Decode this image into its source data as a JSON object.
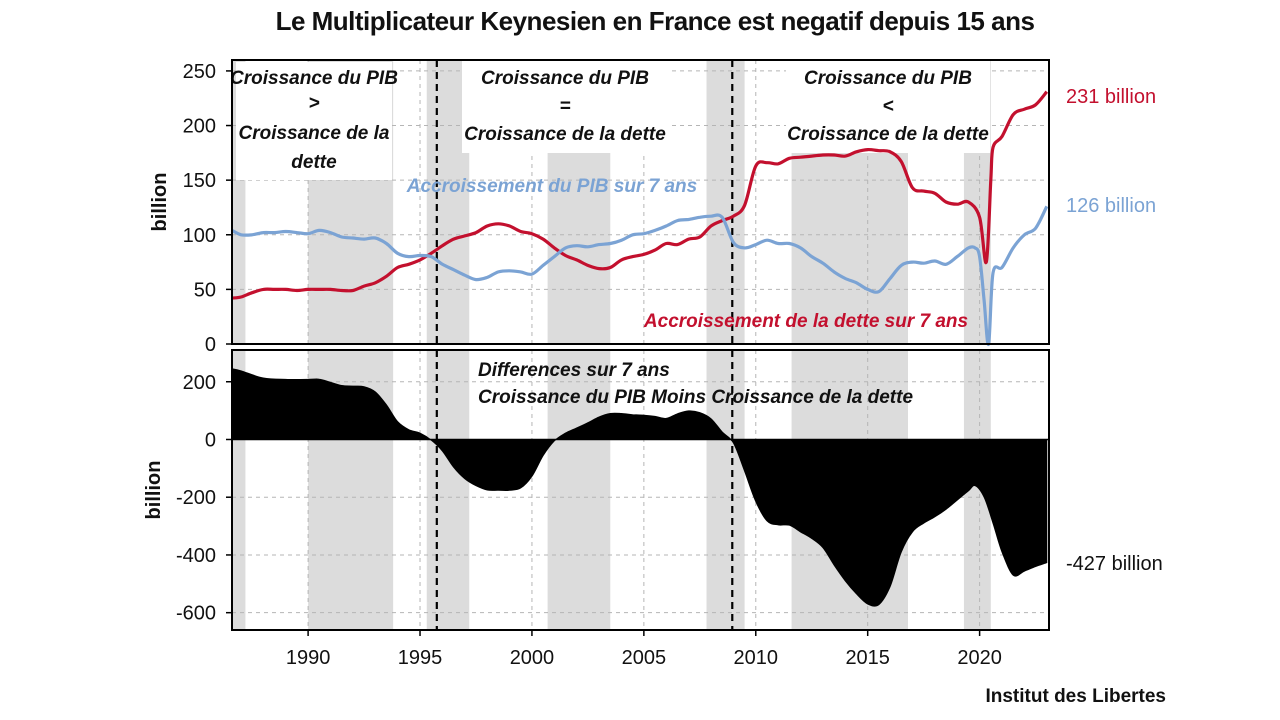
{
  "title": "Le Multiplicateur Keynesien en France est negatif depuis 15 ans",
  "credit": "Institut des Libertes",
  "chart_data": [
    {
      "type": "line",
      "panel": "top",
      "ylabel": "billion",
      "ylim": [
        0,
        260
      ],
      "yticks": [
        0,
        50,
        100,
        150,
        200,
        250
      ],
      "xlim": [
        1986.6,
        2023.1
      ],
      "xticks": [
        1990,
        1995,
        2000,
        2005,
        2010,
        2015,
        2020
      ],
      "shaded_periods": [
        [
          1986.6,
          1987.2
        ],
        [
          1990.0,
          1993.8
        ],
        [
          1995.3,
          1997.2
        ],
        [
          2000.7,
          2003.5
        ],
        [
          2007.8,
          2009.5
        ],
        [
          2011.6,
          2016.8
        ],
        [
          2019.3,
          2020.5
        ]
      ],
      "vlines": [
        1995.75,
        2008.95
      ],
      "annotations": [
        {
          "lines": [
            "Croissance du PIB",
            ">",
            "Croissance de la",
            "dette"
          ]
        },
        {
          "lines": [
            "Croissance du PIB",
            "=",
            "Croissance de la dette"
          ]
        },
        {
          "lines": [
            "Croissance du PIB",
            "<",
            "Croissance de la dette"
          ]
        }
      ],
      "series": [
        {
          "name": "Accroissement du PIB sur 7 ans",
          "color": "#7ba3d4",
          "end_label": "126 billion",
          "points": [
            [
              1986.6,
              104
            ],
            [
              1987.0,
              100
            ],
            [
              1987.5,
              100
            ],
            [
              1988.0,
              102
            ],
            [
              1988.5,
              102
            ],
            [
              1989.0,
              103
            ],
            [
              1989.5,
              102
            ],
            [
              1990.0,
              101
            ],
            [
              1990.5,
              104
            ],
            [
              1991.0,
              102
            ],
            [
              1991.5,
              98
            ],
            [
              1992.0,
              97
            ],
            [
              1992.5,
              96
            ],
            [
              1993.0,
              97
            ],
            [
              1993.5,
              92
            ],
            [
              1994.0,
              83
            ],
            [
              1994.5,
              80
            ],
            [
              1995.0,
              81
            ],
            [
              1995.5,
              80
            ],
            [
              1996.0,
              73
            ],
            [
              1996.5,
              68
            ],
            [
              1997.0,
              63
            ],
            [
              1997.5,
              59
            ],
            [
              1998.0,
              61
            ],
            [
              1998.5,
              66
            ],
            [
              1999.0,
              67
            ],
            [
              1999.5,
              66
            ],
            [
              2000.0,
              64
            ],
            [
              2000.5,
              72
            ],
            [
              2001.0,
              80
            ],
            [
              2001.5,
              88
            ],
            [
              2002.0,
              90
            ],
            [
              2002.5,
              89
            ],
            [
              2003.0,
              91
            ],
            [
              2003.5,
              92
            ],
            [
              2004.0,
              95
            ],
            [
              2004.5,
              100
            ],
            [
              2005.0,
              101
            ],
            [
              2005.5,
              104
            ],
            [
              2006.0,
              108
            ],
            [
              2006.5,
              113
            ],
            [
              2007.0,
              114
            ],
            [
              2007.5,
              116
            ],
            [
              2008.0,
              117
            ],
            [
              2008.5,
              116
            ],
            [
              2009.0,
              93
            ],
            [
              2009.5,
              88
            ],
            [
              2010.0,
              91
            ],
            [
              2010.5,
              95
            ],
            [
              2011.0,
              92
            ],
            [
              2011.5,
              92
            ],
            [
              2012.0,
              88
            ],
            [
              2012.5,
              80
            ],
            [
              2013.0,
              74
            ],
            [
              2013.5,
              66
            ],
            [
              2014.0,
              60
            ],
            [
              2014.5,
              56
            ],
            [
              2015.0,
              50
            ],
            [
              2015.5,
              48
            ],
            [
              2016.0,
              60
            ],
            [
              2016.5,
              72
            ],
            [
              2017.0,
              75
            ],
            [
              2017.5,
              74
            ],
            [
              2018.0,
              76
            ],
            [
              2018.5,
              73
            ],
            [
              2019.0,
              80
            ],
            [
              2019.5,
              88
            ],
            [
              2019.8,
              88
            ],
            [
              2020.0,
              80
            ],
            [
              2020.2,
              40
            ],
            [
              2020.4,
              0
            ],
            [
              2020.6,
              65
            ],
            [
              2021.0,
              70
            ],
            [
              2021.5,
              88
            ],
            [
              2022.0,
              100
            ],
            [
              2022.5,
              106
            ],
            [
              2023.0,
              126
            ]
          ]
        },
        {
          "name": "Accroissement de la dette sur 7 ans",
          "color": "#c3102e",
          "end_label": "231 billion",
          "points": [
            [
              1986.6,
              42
            ],
            [
              1987.0,
              43
            ],
            [
              1987.5,
              47
            ],
            [
              1988.0,
              50
            ],
            [
              1988.5,
              50
            ],
            [
              1989.0,
              50
            ],
            [
              1989.5,
              49
            ],
            [
              1990.0,
              50
            ],
            [
              1990.5,
              50
            ],
            [
              1991.0,
              50
            ],
            [
              1991.5,
              49
            ],
            [
              1992.0,
              49
            ],
            [
              1992.5,
              53
            ],
            [
              1993.0,
              56
            ],
            [
              1993.5,
              62
            ],
            [
              1994.0,
              70
            ],
            [
              1994.5,
              73
            ],
            [
              1995.0,
              77
            ],
            [
              1995.5,
              83
            ],
            [
              1996.0,
              90
            ],
            [
              1996.5,
              96
            ],
            [
              1997.0,
              99
            ],
            [
              1997.5,
              102
            ],
            [
              1998.0,
              108
            ],
            [
              1998.5,
              110
            ],
            [
              1999.0,
              108
            ],
            [
              1999.5,
              103
            ],
            [
              2000.0,
              101
            ],
            [
              2000.5,
              96
            ],
            [
              2001.0,
              88
            ],
            [
              2001.5,
              81
            ],
            [
              2002.0,
              77
            ],
            [
              2002.5,
              72
            ],
            [
              2003.0,
              69
            ],
            [
              2003.5,
              70
            ],
            [
              2004.0,
              77
            ],
            [
              2004.5,
              80
            ],
            [
              2005.0,
              82
            ],
            [
              2005.5,
              86
            ],
            [
              2006.0,
              92
            ],
            [
              2006.5,
              91
            ],
            [
              2007.0,
              96
            ],
            [
              2007.5,
              98
            ],
            [
              2008.0,
              108
            ],
            [
              2008.5,
              113
            ],
            [
              2009.0,
              117
            ],
            [
              2009.5,
              127
            ],
            [
              2010.0,
              163
            ],
            [
              2010.5,
              166
            ],
            [
              2011.0,
              165
            ],
            [
              2011.5,
              170
            ],
            [
              2012.0,
              171
            ],
            [
              2012.5,
              172
            ],
            [
              2013.0,
              173
            ],
            [
              2013.5,
              173
            ],
            [
              2014.0,
              172
            ],
            [
              2014.5,
              176
            ],
            [
              2015.0,
              178
            ],
            [
              2015.5,
              177
            ],
            [
              2016.0,
              176
            ],
            [
              2016.5,
              167
            ],
            [
              2017.0,
              143
            ],
            [
              2017.5,
              140
            ],
            [
              2018.0,
              138
            ],
            [
              2018.5,
              130
            ],
            [
              2019.0,
              128
            ],
            [
              2019.5,
              130
            ],
            [
              2020.0,
              116
            ],
            [
              2020.3,
              75
            ],
            [
              2020.5,
              150
            ],
            [
              2020.6,
              180
            ],
            [
              2021.0,
              190
            ],
            [
              2021.5,
              210
            ],
            [
              2022.0,
              215
            ],
            [
              2022.5,
              219
            ],
            [
              2023.0,
              231
            ]
          ]
        }
      ]
    },
    {
      "type": "area",
      "panel": "bottom",
      "name": "Differences sur 7 ans",
      "subtitle": "Croissance du PIB Moins Croissance de la dette",
      "color": "#000000",
      "ylabel": "billion",
      "ylim": [
        -660,
        310
      ],
      "yticks": [
        200,
        0,
        -200,
        -400,
        -600
      ],
      "yticklabels": [
        "200",
        "0",
        "-200",
        "-400",
        "-600"
      ],
      "end_label": "-427 billion",
      "points": [
        [
          1986.6,
          245
        ],
        [
          1987.0,
          238
        ],
        [
          1988.0,
          213
        ],
        [
          1989.0,
          208
        ],
        [
          1990.0,
          208
        ],
        [
          1990.5,
          209
        ],
        [
          1991.0,
          198
        ],
        [
          1991.5,
          187
        ],
        [
          1992.0,
          185
        ],
        [
          1992.5,
          183
        ],
        [
          1993.0,
          165
        ],
        [
          1993.5,
          120
        ],
        [
          1994.0,
          62
        ],
        [
          1994.5,
          34
        ],
        [
          1995.0,
          22
        ],
        [
          1995.5,
          -2
        ],
        [
          1996.0,
          -40
        ],
        [
          1996.5,
          -96
        ],
        [
          1997.0,
          -136
        ],
        [
          1997.5,
          -160
        ],
        [
          1998.0,
          -175
        ],
        [
          1998.5,
          -176
        ],
        [
          1999.0,
          -176
        ],
        [
          1999.5,
          -168
        ],
        [
          2000.0,
          -128
        ],
        [
          2000.5,
          -56
        ],
        [
          2001.0,
          -5
        ],
        [
          2001.5,
          22
        ],
        [
          2002.0,
          40
        ],
        [
          2002.5,
          58
        ],
        [
          2003.0,
          78
        ],
        [
          2003.5,
          90
        ],
        [
          2004.0,
          90
        ],
        [
          2004.5,
          86
        ],
        [
          2005.0,
          84
        ],
        [
          2005.5,
          80
        ],
        [
          2006.0,
          73
        ],
        [
          2006.5,
          89
        ],
        [
          2007.0,
          99
        ],
        [
          2007.5,
          93
        ],
        [
          2008.0,
          72
        ],
        [
          2008.5,
          26
        ],
        [
          2009.0,
          -12
        ],
        [
          2009.5,
          -110
        ],
        [
          2010.0,
          -215
        ],
        [
          2010.5,
          -282
        ],
        [
          2011.0,
          -296
        ],
        [
          2011.5,
          -297
        ],
        [
          2012.0,
          -320
        ],
        [
          2012.5,
          -343
        ],
        [
          2013.0,
          -375
        ],
        [
          2013.5,
          -435
        ],
        [
          2014.0,
          -490
        ],
        [
          2014.5,
          -535
        ],
        [
          2015.0,
          -570
        ],
        [
          2015.5,
          -572
        ],
        [
          2016.0,
          -510
        ],
        [
          2016.5,
          -390
        ],
        [
          2017.0,
          -320
        ],
        [
          2017.5,
          -290
        ],
        [
          2018.0,
          -268
        ],
        [
          2018.5,
          -242
        ],
        [
          2019.0,
          -210
        ],
        [
          2019.5,
          -178
        ],
        [
          2019.8,
          -160
        ],
        [
          2020.2,
          -200
        ],
        [
          2020.6,
          -290
        ],
        [
          2021.0,
          -390
        ],
        [
          2021.5,
          -470
        ],
        [
          2022.0,
          -456
        ],
        [
          2022.5,
          -440
        ],
        [
          2023.0,
          -427
        ]
      ]
    }
  ]
}
